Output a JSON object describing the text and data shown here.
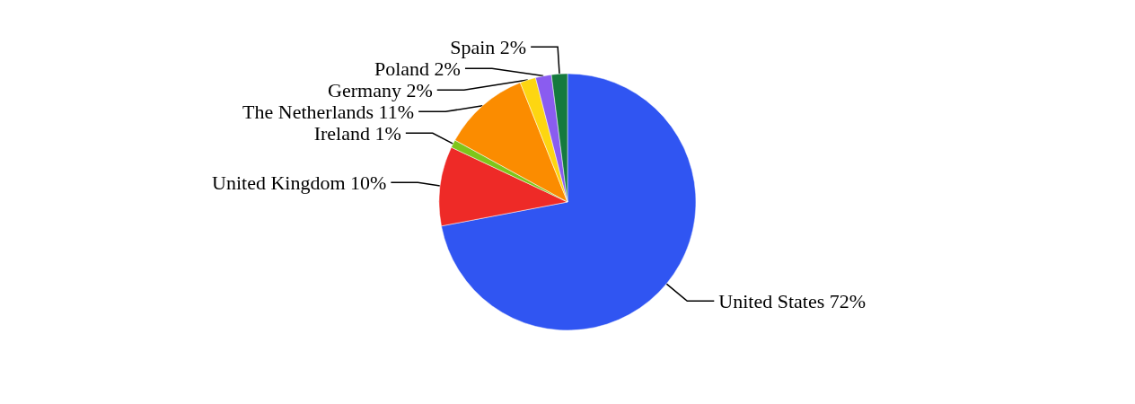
{
  "chart_data": {
    "type": "pie",
    "categories": [
      "United States",
      "United Kingdom",
      "Ireland",
      "The Netherlands",
      "Germany",
      "Poland",
      "Spain"
    ],
    "values": [
      72,
      10,
      1,
      11,
      2,
      2,
      2
    ],
    "value_labels": [
      "72%",
      "10%",
      "1%",
      "11%",
      "2%",
      "2%",
      "2%"
    ],
    "colors": [
      "#3055f2",
      "#ee2a27",
      "#7ec61a",
      "#fb8c00",
      "#fdd611",
      "#8a5cf0",
      "#157a3e"
    ],
    "legend": false
  }
}
